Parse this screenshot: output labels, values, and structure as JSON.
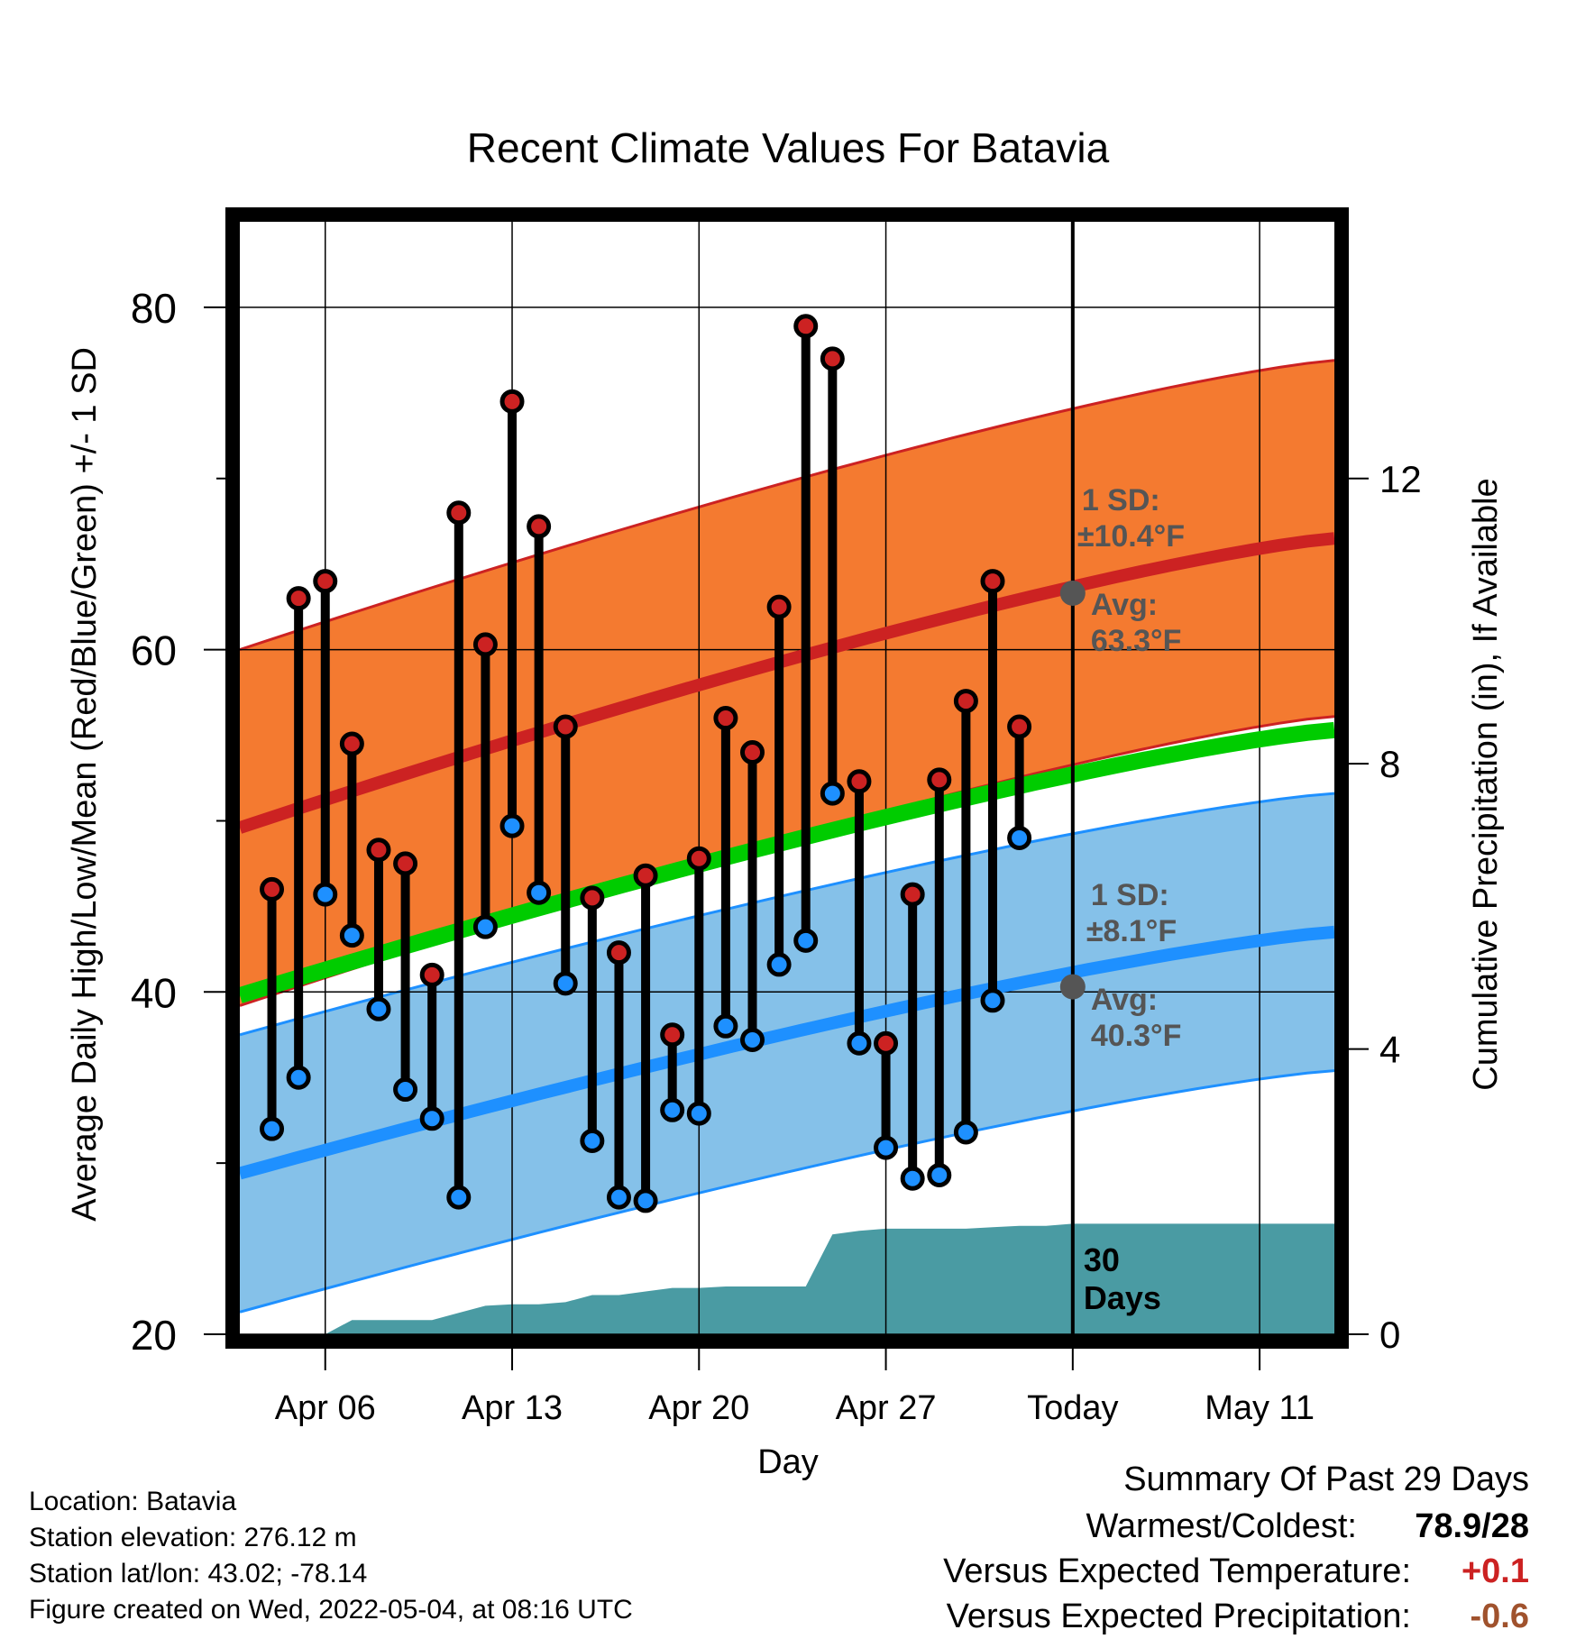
{
  "chart_data": {
    "type": "line",
    "title": "Recent Climate Values For Batavia",
    "xlabel": "Day",
    "ylabel": "Average Daily High/Low/Mean (Red/Blue/Green) +/- 1 SD",
    "y2label": "Cumulative Precipitation (in), If Available",
    "ylim": [
      20,
      85
    ],
    "y2lim": [
      0,
      15.6
    ],
    "yticks": [
      "20",
      "40",
      "60",
      "80"
    ],
    "y2ticks": [
      "0",
      "4",
      "8",
      "12"
    ],
    "xtick_labels": [
      "Apr 06",
      "Apr 13",
      "Apr 20",
      "Apr 27",
      "Today",
      "May 11"
    ],
    "xtick_days": [
      6,
      13,
      20,
      27,
      34,
      41
    ],
    "xlim": [
      2.8,
      43.8
    ],
    "today_day": 34,
    "grid": true,
    "days": [
      4,
      5,
      6,
      7,
      8,
      9,
      10,
      11,
      12,
      13,
      14,
      15,
      16,
      17,
      18,
      19,
      20,
      21,
      22,
      23,
      24,
      25,
      26,
      27,
      28,
      29,
      30,
      31,
      32
    ],
    "highs": [
      46,
      63,
      64,
      54.5,
      48.3,
      47.5,
      41,
      68,
      60.3,
      74.5,
      67.2,
      55.5,
      45.5,
      42.3,
      46.8,
      37.5,
      47.8,
      56,
      54,
      62.5,
      78.9,
      77,
      52.3,
      37,
      45.7,
      52.4,
      57,
      64,
      55.5
    ],
    "lows": [
      32,
      35,
      45.7,
      43.3,
      39,
      34.3,
      32.6,
      28,
      43.8,
      49.7,
      45.8,
      40.5,
      31.3,
      28,
      27.8,
      33.1,
      32.9,
      38,
      37.2,
      41.6,
      43,
      51.6,
      37,
      30.9,
      29.1,
      29.3,
      31.8,
      39.5,
      49
    ],
    "series": [
      {
        "name": "Avg High",
        "color": "#cc2222",
        "x": [
          2.8,
          43.8
        ],
        "values": [
          49.6,
          66.5
        ],
        "sd": 10.4,
        "sd_label": "1 SD:",
        "sd_text": "±10.4°F",
        "avg_label": "Avg:",
        "avg_text": "63.3°F",
        "today_value": 63.3
      },
      {
        "name": "Avg Low",
        "color": "#1e90ff",
        "x": [
          2.8,
          43.8
        ],
        "values": [
          29.4,
          43.5
        ],
        "sd": 8.1,
        "sd_label": "1 SD:",
        "sd_text": "±8.1°F",
        "avg_label": "Avg:",
        "avg_text": "40.3°F",
        "today_value": 40.3
      },
      {
        "name": "Avg Mean",
        "color": "#00cc00",
        "x": [
          2.8,
          43.8
        ],
        "values": [
          39.8,
          55.3
        ]
      }
    ],
    "precip": {
      "color": "#4a9ba3",
      "label_line1": "30",
      "label_line2": "Days",
      "x": [
        3,
        4,
        5,
        6,
        7,
        8,
        9,
        10,
        11,
        12,
        13,
        14,
        15,
        16,
        17,
        18,
        19,
        20,
        21,
        22,
        23,
        24,
        25,
        26,
        27,
        28,
        29,
        30,
        31,
        32,
        33,
        34,
        43.8
      ],
      "values": [
        0,
        0,
        0,
        0,
        0.2,
        0.2,
        0.2,
        0.2,
        0.3,
        0.4,
        0.42,
        0.42,
        0.45,
        0.55,
        0.55,
        0.6,
        0.65,
        0.65,
        0.67,
        0.67,
        0.67,
        0.67,
        1.4,
        1.45,
        1.48,
        1.48,
        1.48,
        1.48,
        1.5,
        1.52,
        1.52,
        1.55,
        1.55
      ]
    },
    "colors": {
      "high_dot": "#cc2222",
      "low_dot": "#1e90ff",
      "high_band": "#f47a30",
      "low_band": "#85c1e9",
      "today_dot": "#555555",
      "annot": "#555555"
    }
  },
  "info": {
    "location": "Location: Batavia",
    "elevation": "Station elevation: 276.12 m",
    "latlon": "Station lat/lon: 43.02; -78.14",
    "created": "Figure created on Wed, 2022-05-04, at 08:16 UTC"
  },
  "summary": {
    "title": "Summary Of Past 29 Days",
    "warm_label": "Warmest/Coldest:",
    "warm_value": "78.9/28",
    "temp_label": "Versus Expected Temperature:",
    "temp_value": "+0.1",
    "temp_color": "#cc2222",
    "precip_label": "Versus Expected Precipitation:",
    "precip_value": "-0.6",
    "precip_color": "#a0522d"
  }
}
